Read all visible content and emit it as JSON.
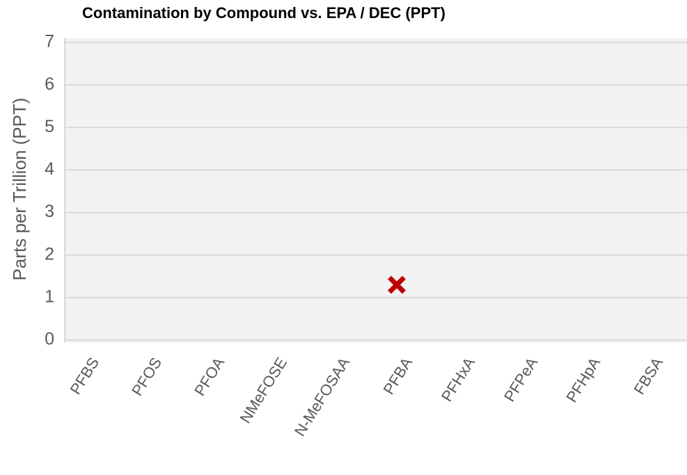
{
  "chart_data": {
    "type": "scatter",
    "title": "Contamination by Compound vs. EPA / DEC  (PPT)",
    "y_label": "Parts per Trillion (PPT)",
    "categories": [
      "PFBS",
      "PFOS",
      "PFOA",
      "NMeFOSE",
      "N-MeFOSAA",
      "PFBA",
      "PFHxA",
      "PFPeA",
      "PFHpA",
      "FBSA"
    ],
    "values": [
      null,
      null,
      null,
      null,
      null,
      1.3,
      null,
      null,
      null,
      null
    ],
    "color": "#c00000",
    "marker": "x",
    "ylim": [
      0,
      7
    ],
    "yticks": [
      0,
      1,
      2,
      3,
      4,
      5,
      6,
      7
    ],
    "grid": true
  }
}
